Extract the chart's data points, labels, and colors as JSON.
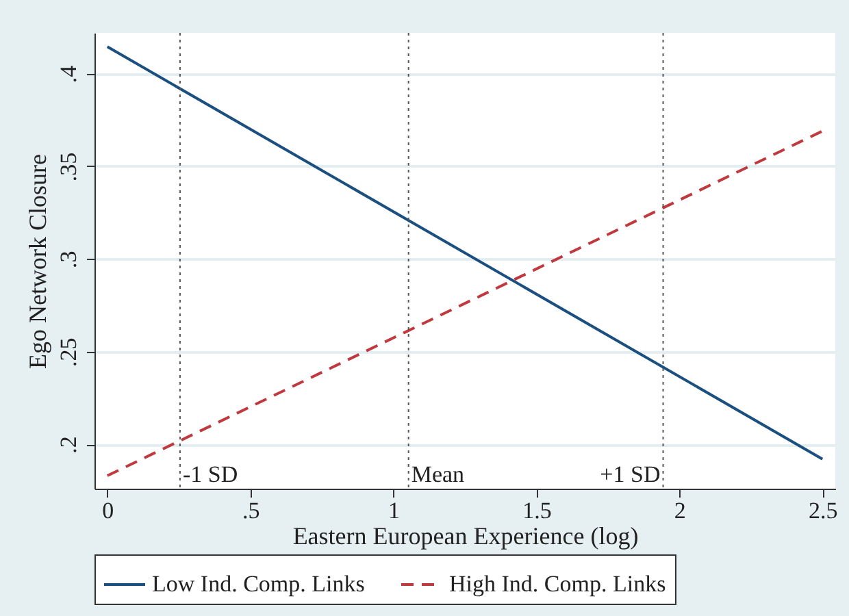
{
  "chart_data": {
    "type": "line",
    "xlabel": "Eastern European Experience (log)",
    "ylabel": "Ego Network Closure",
    "x": [
      0,
      2.5
    ],
    "series": [
      {
        "name": "Low Ind. Comp. Links",
        "color": "#1a4f7f",
        "line_style": "solid",
        "values": [
          0.4145,
          0.192
        ]
      },
      {
        "name": "High Ind. Comp. Links",
        "color": "#c0393f",
        "line_style": "dashed",
        "values": [
          0.183,
          0.369
        ]
      }
    ],
    "xlim": [
      -0.045,
      2.545
    ],
    "xticks": [
      0,
      {
        "value": 0.5,
        "label": ".5"
      },
      1,
      1.5,
      2,
      2.5
    ],
    "ylim": [
      0.176,
      0.422
    ],
    "yticks": [
      {
        "value": 0.2,
        "label": ".2"
      },
      {
        "value": 0.25,
        "label": ".25"
      },
      {
        "value": 0.3,
        "label": ".3"
      },
      {
        "value": 0.35,
        "label": ".35"
      },
      {
        "value": 0.4,
        "label": ".4"
      }
    ],
    "ref_lines": [
      {
        "axis": "x",
        "value": 0.254,
        "label": "-1 SD",
        "line_style": "dotted"
      },
      {
        "axis": "x",
        "value": 1.053,
        "label": "Mean",
        "line_style": "dotted"
      },
      {
        "axis": "x",
        "value": 1.943,
        "label": "+1 SD",
        "line_style": "dotted"
      }
    ],
    "grid": "y",
    "legend": "bottom",
    "marker": "none"
  }
}
